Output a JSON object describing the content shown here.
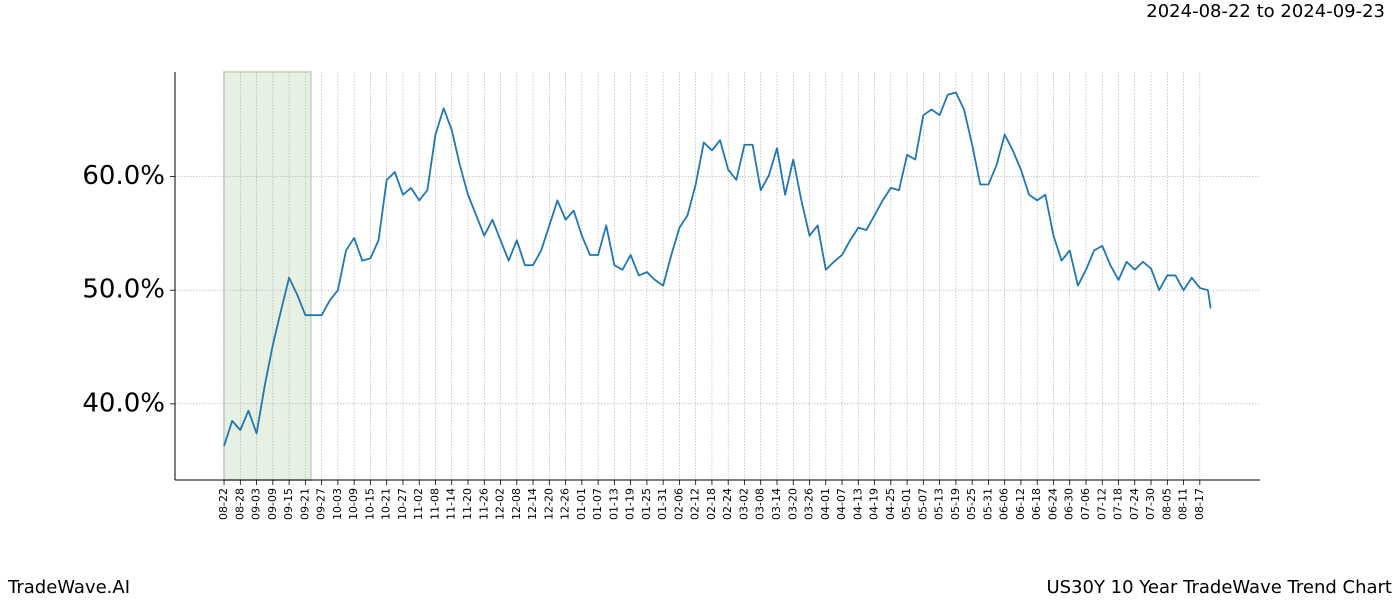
{
  "chart_data": {
    "type": "line",
    "subtitle": "2024-08-22 to 2024-09-23",
    "footer_left": "TradeWave.AI",
    "footer_right": "US30Y 10 Year TradeWave Trend Chart",
    "highlight_x": [
      0,
      32
    ],
    "x": [
      0,
      3,
      6,
      9,
      12,
      15,
      18,
      21,
      24,
      27,
      30,
      33,
      36,
      39,
      42,
      45,
      48,
      51,
      54,
      57,
      60,
      63,
      66,
      69,
      72,
      75,
      78,
      81,
      84,
      87,
      90,
      93,
      96,
      99,
      102,
      105,
      108,
      111,
      114,
      117,
      120,
      123,
      126,
      129,
      132,
      135,
      138,
      141,
      144,
      147,
      150,
      153,
      156,
      159,
      162,
      165,
      168,
      171,
      174,
      177,
      180,
      183,
      186,
      189,
      192,
      195,
      198,
      201,
      204,
      207,
      210,
      213,
      216,
      219,
      222,
      225,
      228,
      231,
      234,
      237,
      240,
      243,
      246,
      249,
      252,
      255,
      258,
      261,
      264,
      267,
      270,
      273,
      276,
      279,
      282,
      285,
      288,
      291,
      294,
      297,
      300,
      303,
      306,
      309,
      312,
      315,
      318,
      321,
      324,
      327,
      330,
      333,
      336,
      339,
      342,
      345,
      348,
      351,
      354,
      357,
      360,
      363,
      364
    ],
    "series": [
      {
        "color": "#1f77b4",
        "values": [
          36.3,
          38.5,
          37.7,
          39.4,
          37.4,
          41.6,
          45.2,
          48.2,
          51.1,
          49.6,
          47.8,
          47.8,
          47.8,
          49.1,
          50.0,
          53.5,
          54.6,
          52.6,
          52.8,
          54.4,
          59.7,
          60.4,
          58.4,
          59.0,
          57.9,
          58.8,
          63.7,
          66.0,
          64.1,
          61.0,
          58.4,
          56.6,
          54.8,
          56.2,
          54.4,
          52.6,
          54.4,
          52.2,
          52.2,
          53.5,
          55.7,
          57.9,
          56.2,
          57.0,
          54.8,
          53.1,
          53.1,
          55.7,
          52.2,
          51.8,
          53.1,
          51.3,
          51.6,
          50.9,
          50.4,
          53.1,
          55.5,
          56.6,
          59.3,
          63.0,
          62.3,
          63.2,
          60.6,
          59.7,
          62.8,
          62.8,
          58.8,
          60.1,
          62.5,
          58.4,
          61.5,
          57.9,
          54.8,
          55.7,
          51.8,
          52.5,
          53.1,
          54.4,
          55.5,
          55.3,
          56.6,
          57.9,
          59.0,
          58.8,
          61.9,
          61.5,
          65.4,
          65.9,
          65.4,
          67.2,
          67.4,
          65.9,
          62.8,
          59.3,
          59.3,
          61.0,
          63.7,
          62.3,
          60.6,
          58.4,
          57.9,
          58.4,
          54.8,
          52.6,
          53.5,
          50.4,
          51.8,
          53.5,
          53.9,
          52.2,
          50.9,
          52.5,
          51.8,
          52.5,
          51.9,
          50.0,
          51.3,
          51.3,
          50.0,
          51.1,
          50.2,
          50.0,
          48.4
        ]
      }
    ],
    "xlim": [
      -18.1,
      382.2
    ],
    "xticks": [
      {
        "value": 0,
        "label": "08-22"
      },
      {
        "value": 6,
        "label": "08-28"
      },
      {
        "value": 12,
        "label": "09-03"
      },
      {
        "value": 18,
        "label": "09-09"
      },
      {
        "value": 24,
        "label": "09-15"
      },
      {
        "value": 30,
        "label": "09-21"
      },
      {
        "value": 36,
        "label": "09-27"
      },
      {
        "value": 42,
        "label": "10-03"
      },
      {
        "value": 48,
        "label": "10-09"
      },
      {
        "value": 54,
        "label": "10-15"
      },
      {
        "value": 60,
        "label": "10-21"
      },
      {
        "value": 66,
        "label": "10-27"
      },
      {
        "value": 72,
        "label": "11-02"
      },
      {
        "value": 78,
        "label": "11-08"
      },
      {
        "value": 84,
        "label": "11-14"
      },
      {
        "value": 90,
        "label": "11-20"
      },
      {
        "value": 96,
        "label": "11-26"
      },
      {
        "value": 102,
        "label": "12-02"
      },
      {
        "value": 108,
        "label": "12-08"
      },
      {
        "value": 114,
        "label": "12-14"
      },
      {
        "value": 120,
        "label": "12-20"
      },
      {
        "value": 126,
        "label": "12-26"
      },
      {
        "value": 132,
        "label": "01-01"
      },
      {
        "value": 138,
        "label": "01-07"
      },
      {
        "value": 144,
        "label": "01-13"
      },
      {
        "value": 150,
        "label": "01-19"
      },
      {
        "value": 156,
        "label": "01-25"
      },
      {
        "value": 162,
        "label": "01-31"
      },
      {
        "value": 168,
        "label": "02-06"
      },
      {
        "value": 174,
        "label": "02-12"
      },
      {
        "value": 180,
        "label": "02-18"
      },
      {
        "value": 186,
        "label": "02-24"
      },
      {
        "value": 192,
        "label": "03-02"
      },
      {
        "value": 198,
        "label": "03-08"
      },
      {
        "value": 204,
        "label": "03-14"
      },
      {
        "value": 210,
        "label": "03-20"
      },
      {
        "value": 216,
        "label": "03-26"
      },
      {
        "value": 222,
        "label": "04-01"
      },
      {
        "value": 228,
        "label": "04-07"
      },
      {
        "value": 234,
        "label": "04-13"
      },
      {
        "value": 240,
        "label": "04-19"
      },
      {
        "value": 246,
        "label": "04-25"
      },
      {
        "value": 252,
        "label": "05-01"
      },
      {
        "value": 258,
        "label": "05-07"
      },
      {
        "value": 264,
        "label": "05-13"
      },
      {
        "value": 270,
        "label": "05-19"
      },
      {
        "value": 276,
        "label": "05-25"
      },
      {
        "value": 282,
        "label": "05-31"
      },
      {
        "value": 288,
        "label": "06-06"
      },
      {
        "value": 294,
        "label": "06-12"
      },
      {
        "value": 300,
        "label": "06-18"
      },
      {
        "value": 306,
        "label": "06-24"
      },
      {
        "value": 312,
        "label": "06-30"
      },
      {
        "value": 318,
        "label": "07-06"
      },
      {
        "value": 324,
        "label": "07-12"
      },
      {
        "value": 330,
        "label": "07-18"
      },
      {
        "value": 336,
        "label": "07-24"
      },
      {
        "value": 342,
        "label": "07-30"
      },
      {
        "value": 348,
        "label": "08-05"
      },
      {
        "value": 354,
        "label": "08-11"
      },
      {
        "value": 360,
        "label": "08-17"
      }
    ],
    "ylim": [
      33.3,
      69.2
    ],
    "yticks": [
      {
        "value": 40,
        "label": "40.0%"
      },
      {
        "value": 50,
        "label": "50.0%"
      },
      {
        "value": 60,
        "label": "60.0%"
      }
    ],
    "grid": true
  }
}
